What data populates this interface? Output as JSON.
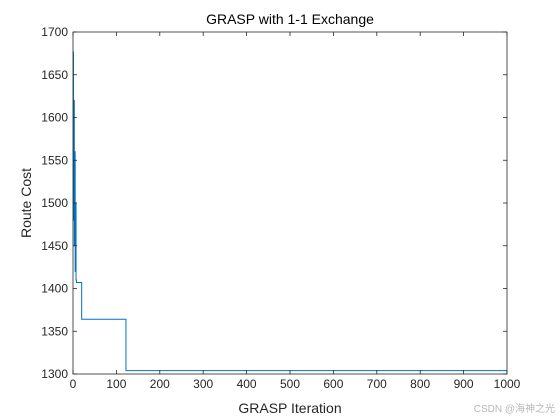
{
  "chart_data": {
    "type": "line",
    "title": "GRASP with 1-1 Exchange",
    "xlabel": "GRASP Iteration",
    "ylabel": "Route Cost",
    "xlim": [
      0,
      1000
    ],
    "ylim": [
      1300,
      1700
    ],
    "xticks": [
      0,
      100,
      200,
      300,
      400,
      500,
      600,
      700,
      800,
      900,
      1000
    ],
    "yticks": [
      1300,
      1350,
      1400,
      1450,
      1500,
      1550,
      1600,
      1650,
      1700
    ],
    "grid": false,
    "legend": "none",
    "series": [
      {
        "color": "#0072BD",
        "x": [
          1,
          1,
          2,
          2,
          3,
          3,
          4,
          4,
          5,
          5,
          6,
          6,
          7,
          7,
          8,
          8,
          20,
          20,
          122,
          122,
          1000
        ],
        "y": [
          1677,
          1480,
          1480,
          1620,
          1620,
          1450,
          1450,
          1560,
          1560,
          1420,
          1420,
          1500,
          1500,
          1410,
          1410,
          1407,
          1407,
          1364,
          1364,
          1304,
          1304
        ]
      }
    ]
  },
  "watermark": "CSDN @海神之光"
}
